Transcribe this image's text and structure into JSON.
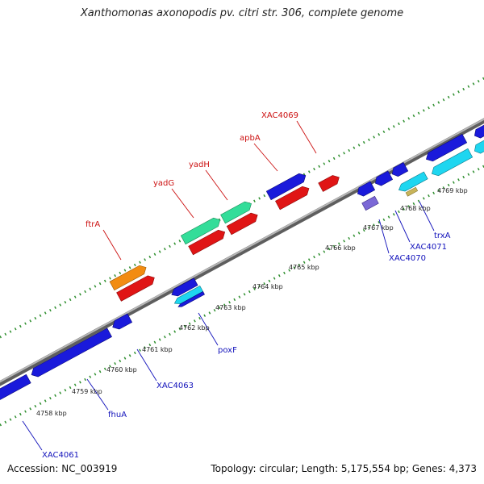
{
  "title": "Xanthomonas axonopodis pv. citri str. 306, complete genome",
  "accession": "Accession: NC_003919",
  "summary": "Topology: circular; Length: 5,175,554 bp; Genes: 4,373",
  "colors": {
    "blue": "#1a1adb",
    "red": "#e01515",
    "orange": "#f28c12",
    "green": "#33dd99",
    "cyan": "#1ed6f0",
    "purple": "#7b68d6",
    "tan": "#c8b45a",
    "forward_label": "#cc1111",
    "reverse_label": "#1111bb",
    "backbone": "#8a8a8a",
    "tick": "#2f8f2f"
  },
  "scale_labels": [
    "4758 kbp",
    "4759 kbp",
    "4760 kbp",
    "4761 kbp",
    "4762 kbp",
    "4763 kbp",
    "4764 kbp",
    "4765 kbp",
    "4766 kbp",
    "4767 kbp",
    "4768 kbp",
    "4769 kbp"
  ],
  "forward_labels": [
    {
      "text": "ftrA"
    },
    {
      "text": "yadG"
    },
    {
      "text": "yadH"
    },
    {
      "text": "apbA"
    },
    {
      "text": "XAC4069"
    }
  ],
  "reverse_labels": [
    {
      "text": "XAC4061"
    },
    {
      "text": "fhuA"
    },
    {
      "text": "XAC4063"
    },
    {
      "text": "poxF"
    },
    {
      "text": "XAC4070"
    },
    {
      "text": "XAC4071"
    },
    {
      "text": "trxA"
    }
  ]
}
